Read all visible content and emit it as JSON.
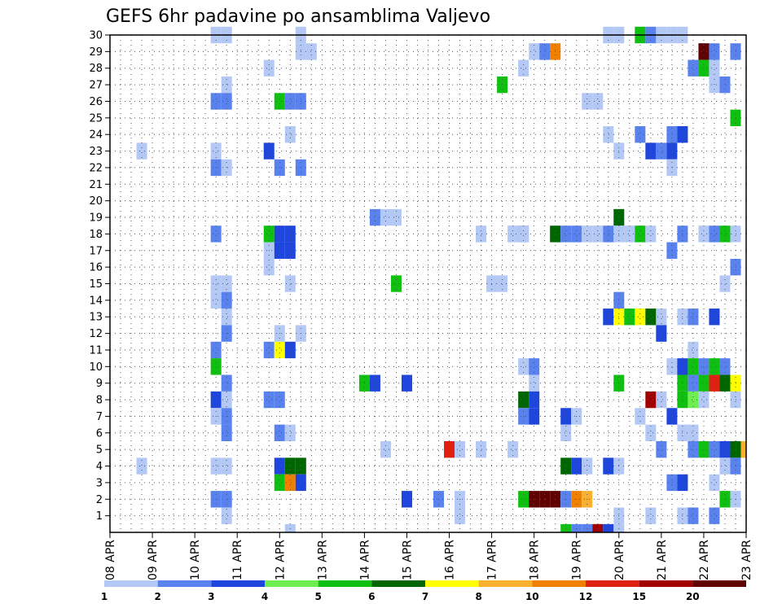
{
  "chart_data": {
    "type": "heatmap",
    "title": "GEFS 6hr padavine po ansamblima Valjevo",
    "xlabel": "",
    "ylabel": "",
    "x_ticks": [
      "08 APR",
      "09 APR",
      "10 APR",
      "11 APR",
      "12 APR",
      "13 APR",
      "14 APR",
      "15 APR",
      "16 APR",
      "17 APR",
      "18 APR",
      "19 APR",
      "20 APR",
      "21 APR",
      "22 APR",
      "23 APR"
    ],
    "y_ticks": [
      "1",
      "2",
      "3",
      "4",
      "5",
      "6",
      "7",
      "8",
      "9",
      "10",
      "11",
      "12",
      "13",
      "14",
      "15",
      "16",
      "17",
      "18",
      "19",
      "20",
      "21",
      "22",
      "23",
      "24",
      "25",
      "26",
      "27",
      "28",
      "29",
      "30"
    ],
    "xlim_days": [
      0,
      15
    ],
    "ylim": [
      0,
      30
    ],
    "time_step_hours": 6,
    "grid": "dotted",
    "colorbar": {
      "levels": [
        "1",
        "2",
        "3",
        "4",
        "5",
        "6",
        "7",
        "8",
        "10",
        "12",
        "15",
        "20"
      ],
      "colors": [
        "#b4c8f5",
        "#5a82ee",
        "#1e46dc",
        "#6eee50",
        "#10c010",
        "#006600",
        "#ffff00",
        "#f8b030",
        "#f08000",
        "#e02010",
        "#a00000",
        "#600000"
      ]
    },
    "cells": [
      [
        30,
        2.5,
        1
      ],
      [
        30,
        2.75,
        1
      ],
      [
        30,
        4.5,
        1
      ],
      [
        30,
        11.75,
        1
      ],
      [
        30,
        12,
        1
      ],
      [
        30,
        12.5,
        5
      ],
      [
        30,
        12.75,
        2
      ],
      [
        30,
        13,
        1
      ],
      [
        30,
        13.25,
        1
      ],
      [
        30,
        13.5,
        1
      ],
      [
        29,
        4.5,
        1
      ],
      [
        29,
        4.75,
        1
      ],
      [
        29,
        10.0,
        1
      ],
      [
        29,
        10.25,
        2
      ],
      [
        29,
        10.5,
        9
      ],
      [
        29,
        14.0,
        12
      ],
      [
        29,
        14.25,
        2
      ],
      [
        29,
        14.75,
        2
      ],
      [
        28,
        3.75,
        1
      ],
      [
        28,
        9.75,
        1
      ],
      [
        28,
        13.75,
        2
      ],
      [
        28,
        14.0,
        5
      ],
      [
        28,
        14.25,
        1
      ],
      [
        27,
        2.75,
        1
      ],
      [
        27,
        9.25,
        5
      ],
      [
        27,
        14.25,
        1
      ],
      [
        27,
        14.5,
        2
      ],
      [
        26,
        2.5,
        2
      ],
      [
        26,
        2.75,
        2
      ],
      [
        26,
        4.0,
        5
      ],
      [
        26,
        4.25,
        2
      ],
      [
        26,
        4.5,
        2
      ],
      [
        26,
        11.25,
        1
      ],
      [
        26,
        11.5,
        1
      ],
      [
        25,
        14.75,
        5
      ],
      [
        24,
        4.25,
        1
      ],
      [
        24,
        11.75,
        1
      ],
      [
        24,
        12.5,
        2
      ],
      [
        24,
        13.25,
        2
      ],
      [
        24,
        13.5,
        3
      ],
      [
        23,
        0.75,
        1
      ],
      [
        23,
        2.5,
        1
      ],
      [
        23,
        3.75,
        3
      ],
      [
        23,
        12.0,
        1
      ],
      [
        23,
        12.75,
        3
      ],
      [
        23,
        13.0,
        2
      ],
      [
        23,
        13.25,
        3
      ],
      [
        22,
        2.5,
        2
      ],
      [
        22,
        2.75,
        1
      ],
      [
        22,
        4.0,
        2
      ],
      [
        22,
        4.5,
        2
      ],
      [
        22,
        13.25,
        1
      ],
      [
        18,
        9.5,
        1
      ],
      [
        18,
        9.75,
        2
      ],
      [
        19,
        6.25,
        2
      ],
      [
        19,
        6.5,
        1
      ],
      [
        19,
        6.75,
        1
      ],
      [
        19,
        12.0,
        6
      ],
      [
        18,
        2.5,
        2
      ],
      [
        18,
        3.75,
        5
      ],
      [
        18,
        4.0,
        3
      ],
      [
        18,
        4.25,
        3
      ],
      [
        18,
        8.75,
        1
      ],
      [
        18,
        9.75,
        1
      ],
      [
        18,
        10.5,
        6
      ],
      [
        18,
        10.75,
        2
      ],
      [
        18,
        11.0,
        2
      ],
      [
        18,
        11.25,
        1
      ],
      [
        18,
        11.5,
        1
      ],
      [
        18,
        11.75,
        2
      ],
      [
        18,
        12.0,
        1
      ],
      [
        18,
        12.25,
        1
      ],
      [
        18,
        12.5,
        5
      ],
      [
        18,
        12.75,
        1
      ],
      [
        18,
        13.5,
        2
      ],
      [
        18,
        14.0,
        1
      ],
      [
        18,
        14.25,
        2
      ],
      [
        18,
        14.5,
        5
      ],
      [
        18,
        14.75,
        1
      ],
      [
        17,
        3.75,
        1
      ],
      [
        17,
        4.0,
        3
      ],
      [
        17,
        4.25,
        3
      ],
      [
        17,
        13.25,
        2
      ],
      [
        16,
        3.75,
        1
      ],
      [
        16,
        14.75,
        2
      ],
      [
        15,
        2.5,
        1
      ],
      [
        15,
        2.75,
        1
      ],
      [
        15,
        4.25,
        1
      ],
      [
        15,
        6.75,
        5
      ],
      [
        15,
        9.0,
        1
      ],
      [
        15,
        9.25,
        1
      ],
      [
        15,
        14.5,
        1
      ],
      [
        14,
        2.5,
        1
      ],
      [
        14,
        2.75,
        2
      ],
      [
        14,
        12.0,
        2
      ],
      [
        13,
        2.75,
        1
      ],
      [
        13,
        11.75,
        3
      ],
      [
        13,
        12.0,
        7
      ],
      [
        13,
        12.25,
        5
      ],
      [
        13,
        12.5,
        7
      ],
      [
        13,
        12.75,
        6
      ],
      [
        13,
        13.0,
        1
      ],
      [
        13,
        13.5,
        1
      ],
      [
        13,
        13.75,
        2
      ],
      [
        13,
        14.25,
        3
      ],
      [
        12,
        2.75,
        2
      ],
      [
        12,
        4.0,
        1
      ],
      [
        12,
        4.5,
        1
      ],
      [
        12,
        13.0,
        3
      ],
      [
        11,
        2.5,
        2
      ],
      [
        11,
        3.75,
        2
      ],
      [
        11,
        4.0,
        7
      ],
      [
        11,
        4.25,
        3
      ],
      [
        11,
        13.75,
        1
      ],
      [
        10,
        2.5,
        5
      ],
      [
        10,
        9.75,
        1
      ],
      [
        10,
        10.0,
        2
      ],
      [
        10,
        13.25,
        1
      ],
      [
        10,
        13.5,
        3
      ],
      [
        10,
        13.75,
        5
      ],
      [
        10,
        14.0,
        2
      ],
      [
        10,
        14.25,
        5
      ],
      [
        10,
        14.5,
        2
      ],
      [
        9,
        2.75,
        2
      ],
      [
        9,
        6.0,
        5
      ],
      [
        9,
        6.25,
        3
      ],
      [
        9,
        7.0,
        3
      ],
      [
        9,
        10.0,
        1
      ],
      [
        9,
        12.0,
        5
      ],
      [
        9,
        13.5,
        5
      ],
      [
        9,
        13.75,
        2
      ],
      [
        9,
        14.0,
        5
      ],
      [
        9,
        14.25,
        10
      ],
      [
        9,
        14.5,
        6
      ],
      [
        9,
        14.75,
        7
      ],
      [
        8,
        2.5,
        3
      ],
      [
        8,
        2.75,
        1
      ],
      [
        8,
        3.75,
        2
      ],
      [
        8,
        4.0,
        2
      ],
      [
        8,
        9.75,
        6
      ],
      [
        8,
        10.0,
        3
      ],
      [
        8,
        12.75,
        11
      ],
      [
        8,
        13.0,
        1
      ],
      [
        8,
        13.5,
        5
      ],
      [
        8,
        13.75,
        4
      ],
      [
        8,
        14.0,
        1
      ],
      [
        8,
        14.75,
        1
      ],
      [
        7,
        2.5,
        1
      ],
      [
        7,
        2.75,
        2
      ],
      [
        7,
        9.75,
        2
      ],
      [
        7,
        10.0,
        3
      ],
      [
        7,
        10.75,
        3
      ],
      [
        7,
        11.0,
        1
      ],
      [
        7,
        12.5,
        1
      ],
      [
        7,
        13.25,
        3
      ],
      [
        6,
        2.75,
        2
      ],
      [
        6,
        4.0,
        2
      ],
      [
        6,
        4.25,
        1
      ],
      [
        6,
        10.75,
        1
      ],
      [
        6,
        12.75,
        1
      ],
      [
        6,
        13.5,
        1
      ],
      [
        6,
        13.75,
        1
      ],
      [
        5,
        6.5,
        1
      ],
      [
        5,
        8.0,
        10
      ],
      [
        5,
        8.25,
        1
      ],
      [
        5,
        8.75,
        1
      ],
      [
        5,
        9.5,
        1
      ],
      [
        5,
        13.0,
        2
      ],
      [
        5,
        13.75,
        2
      ],
      [
        5,
        14.0,
        5
      ],
      [
        5,
        14.25,
        2
      ],
      [
        5,
        14.5,
        3
      ],
      [
        5,
        14.75,
        6
      ],
      [
        5,
        15.0,
        8
      ],
      [
        4,
        0.75,
        1
      ],
      [
        4,
        2.5,
        1
      ],
      [
        4,
        2.75,
        1
      ],
      [
        4,
        4.0,
        3
      ],
      [
        4,
        4.25,
        6
      ],
      [
        4,
        4.5,
        6
      ],
      [
        4,
        10.75,
        6
      ],
      [
        4,
        11.0,
        3
      ],
      [
        4,
        11.25,
        1
      ],
      [
        4,
        11.75,
        3
      ],
      [
        4,
        12.0,
        1
      ],
      [
        4,
        14.5,
        1
      ],
      [
        4,
        14.75,
        2
      ],
      [
        3,
        4.0,
        5
      ],
      [
        3,
        4.25,
        9
      ],
      [
        3,
        4.5,
        3
      ],
      [
        3,
        13.25,
        2
      ],
      [
        3,
        13.5,
        3
      ],
      [
        3,
        14.25,
        1
      ],
      [
        2,
        2.5,
        2
      ],
      [
        2,
        2.75,
        2
      ],
      [
        2,
        7.0,
        3
      ],
      [
        2,
        7.75,
        2
      ],
      [
        2,
        8.25,
        1
      ],
      [
        2,
        9.75,
        5
      ],
      [
        2,
        10.0,
        12
      ],
      [
        2,
        10.25,
        12
      ],
      [
        2,
        10.5,
        12
      ],
      [
        2,
        10.75,
        2
      ],
      [
        2,
        11.0,
        9
      ],
      [
        2,
        11.25,
        8
      ],
      [
        2,
        14.5,
        5
      ],
      [
        2,
        14.75,
        1
      ],
      [
        1,
        2.75,
        1
      ],
      [
        1,
        8.25,
        1
      ],
      [
        1,
        12.0,
        1
      ],
      [
        1,
        12.75,
        1
      ],
      [
        1,
        13.5,
        1
      ],
      [
        1,
        13.75,
        2
      ],
      [
        1,
        14.25,
        2
      ],
      [
        0,
        4.25,
        1
      ],
      [
        0,
        10.75,
        5
      ],
      [
        0,
        11.0,
        2
      ],
      [
        0,
        11.25,
        2
      ],
      [
        0,
        11.5,
        11
      ],
      [
        0,
        11.75,
        3
      ],
      [
        0,
        12.0,
        1
      ]
    ]
  }
}
